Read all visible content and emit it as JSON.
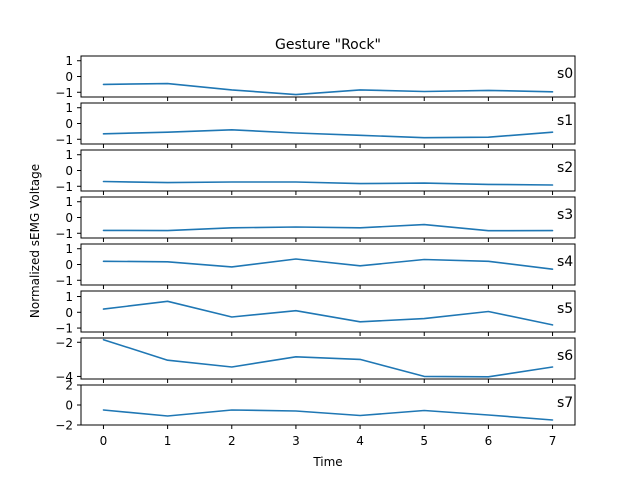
{
  "chart_data": {
    "type": "line",
    "title": "Gesture \"Rock\"",
    "xlabel": "Time",
    "ylabel": "Normalized sEMG Voltage",
    "x": [
      0,
      1,
      2,
      3,
      4,
      5,
      6,
      7
    ],
    "xticks": [
      "0",
      "1",
      "2",
      "3",
      "4",
      "5",
      "6",
      "7"
    ],
    "xlim": [
      -0.35,
      7.35
    ],
    "line_color": "#1f77b4",
    "grid": false,
    "legend": "none",
    "panels": [
      {
        "label": "s0",
        "ylim": [
          -1.3,
          1.3
        ],
        "yticks": [
          1,
          0,
          -1
        ],
        "ytick_labels": [
          "1",
          "0",
          "−1"
        ],
        "values": [
          -0.5,
          -0.45,
          -0.85,
          -1.15,
          -0.85,
          -0.95,
          -0.88,
          -0.97
        ]
      },
      {
        "label": "s1",
        "ylim": [
          -1.3,
          1.3
        ],
        "yticks": [
          1,
          0,
          -1
        ],
        "ytick_labels": [
          "1",
          "0",
          "−1"
        ],
        "values": [
          -0.65,
          -0.55,
          -0.4,
          -0.6,
          -0.75,
          -0.9,
          -0.87,
          -0.55
        ]
      },
      {
        "label": "s2",
        "ylim": [
          -1.3,
          1.3
        ],
        "yticks": [
          1,
          0,
          -1
        ],
        "ytick_labels": [
          "1",
          "0",
          "−1"
        ],
        "values": [
          -0.7,
          -0.77,
          -0.73,
          -0.73,
          -0.83,
          -0.8,
          -0.88,
          -0.92
        ]
      },
      {
        "label": "s3",
        "ylim": [
          -1.3,
          1.3
        ],
        "yticks": [
          1,
          0,
          -1
        ],
        "ytick_labels": [
          "1",
          "0",
          "−1"
        ],
        "values": [
          -0.82,
          -0.83,
          -0.65,
          -0.6,
          -0.65,
          -0.45,
          -0.84,
          -0.83
        ]
      },
      {
        "label": "s4",
        "ylim": [
          -1.3,
          1.3
        ],
        "yticks": [
          1,
          0,
          -1
        ],
        "ytick_labels": [
          "1",
          "0",
          "−1"
        ],
        "values": [
          0.2,
          0.17,
          -0.15,
          0.35,
          -0.08,
          0.32,
          0.2,
          -0.3
        ]
      },
      {
        "label": "s5",
        "ylim": [
          -1.25,
          1.35
        ],
        "yticks": [
          1,
          0,
          -1
        ],
        "ytick_labels": [
          "1",
          "0",
          "−1"
        ],
        "values": [
          0.2,
          0.7,
          -0.3,
          0.1,
          -0.6,
          -0.4,
          0.05,
          -0.8
        ]
      },
      {
        "label": "s6",
        "ylim": [
          -4.15,
          -1.75
        ],
        "yticks": [
          -2,
          -4
        ],
        "ytick_labels": [
          "−2",
          "−4"
        ],
        "values": [
          -1.85,
          -3.05,
          -3.45,
          -2.85,
          -3.0,
          -4.0,
          -4.02,
          -3.45
        ]
      },
      {
        "label": "s7",
        "ylim": [
          -2,
          2
        ],
        "yticks": [
          2,
          0,
          -2
        ],
        "ytick_labels": [
          "2",
          "0",
          "−2"
        ],
        "values": [
          -0.5,
          -1.1,
          -0.5,
          -0.6,
          -1.05,
          -0.55,
          -1.0,
          -1.5
        ]
      }
    ]
  }
}
